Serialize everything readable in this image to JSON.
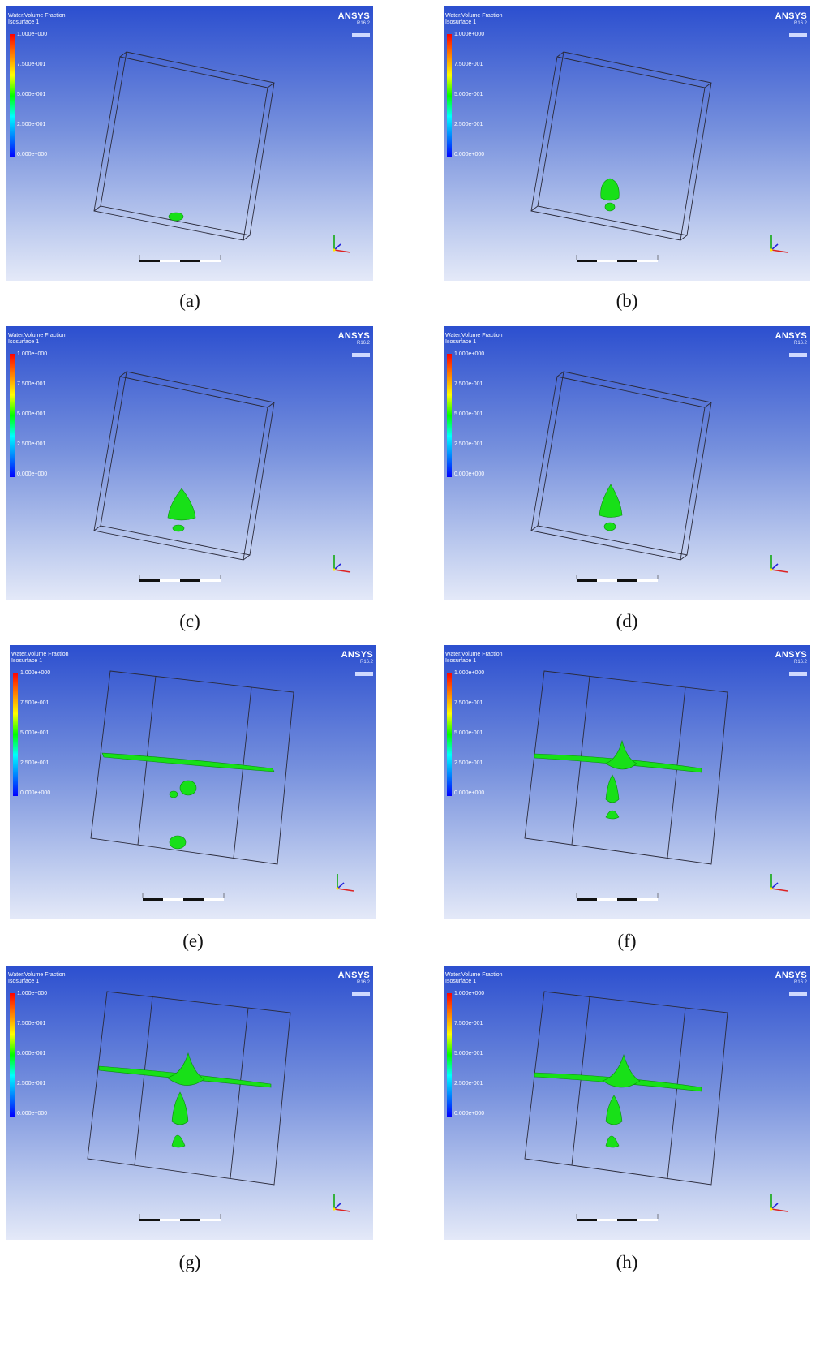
{
  "legend": {
    "title_line1": "Water.Volume Fraction",
    "title_line2": "Isosurface 1",
    "ticks": [
      "1.000e+000",
      "7.500e-001",
      "5.000e-001",
      "2.500e-001",
      "0.000e+000"
    ]
  },
  "brand": {
    "name": "ANSYS",
    "version": "R16.2"
  },
  "panels": [
    {
      "id": "a",
      "caption": "(a)"
    },
    {
      "id": "b",
      "caption": "(b)"
    },
    {
      "id": "c",
      "caption": "(c)"
    },
    {
      "id": "d",
      "caption": "(d)"
    },
    {
      "id": "e",
      "caption": "(e)"
    },
    {
      "id": "f",
      "caption": "(f)"
    },
    {
      "id": "g",
      "caption": "(g)"
    },
    {
      "id": "h",
      "caption": "(h)"
    }
  ],
  "colors": {
    "isosurface": "#18e018",
    "background_top": "#2c4fcf",
    "background_bottom": "#e4e9f8"
  }
}
